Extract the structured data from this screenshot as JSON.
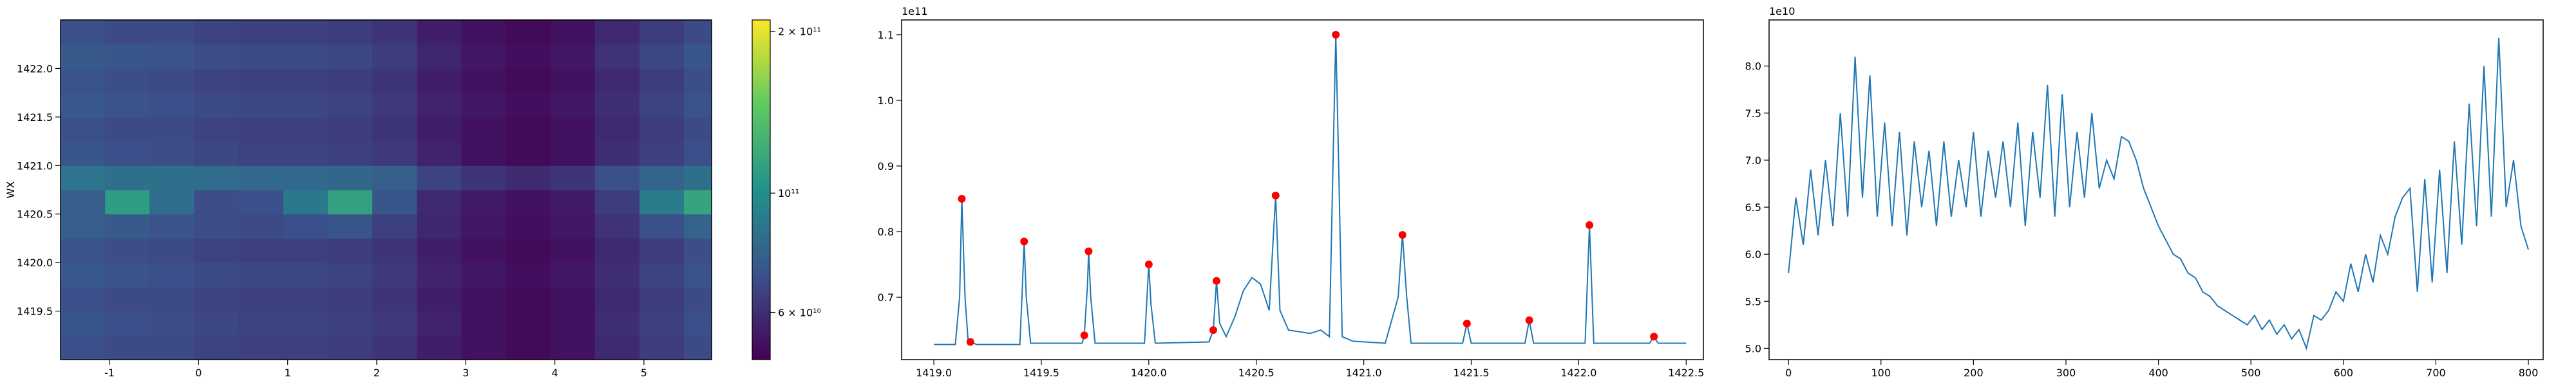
{
  "chart_data": [
    {
      "type": "heatmap",
      "x": [
        -1.3,
        -0.8,
        -0.3,
        0.2,
        0.7,
        1.2,
        1.7,
        2.2,
        2.7,
        3.2,
        3.7,
        4.2,
        4.7,
        5.2,
        5.7
      ],
      "y": [
        1419.125,
        1419.375,
        1419.625,
        1419.875,
        1420.125,
        1420.375,
        1420.625,
        1420.875,
        1421.125,
        1421.375,
        1421.625,
        1421.875,
        1422.125,
        1422.375
      ],
      "z": [
        [
          70000000000.0,
          68000000000.0,
          68000000000.0,
          66000000000.0,
          65000000000.0,
          65000000000.0,
          64000000000.0,
          62000000000.0,
          56000000000.0,
          53000000000.0,
          51000000000.0,
          53000000000.0,
          59000000000.0,
          64000000000.0,
          68000000000.0
        ],
        [
          72000000000.0,
          70000000000.0,
          69000000000.0,
          67000000000.0,
          66000000000.0,
          66000000000.0,
          65000000000.0,
          63000000000.0,
          57000000000.0,
          53000000000.0,
          51000000000.0,
          53000000000.0,
          60000000000.0,
          65000000000.0,
          70000000000.0
        ],
        [
          70000000000.0,
          68000000000.0,
          68000000000.0,
          66000000000.0,
          65000000000.0,
          65000000000.0,
          64000000000.0,
          62000000000.0,
          56000000000.0,
          53000000000.0,
          51000000000.0,
          53000000000.0,
          59000000000.0,
          64000000000.0,
          68000000000.0
        ],
        [
          73000000000.0,
          71000000000.0,
          70000000000.0,
          68000000000.0,
          67000000000.0,
          67000000000.0,
          66000000000.0,
          63000000000.0,
          57000000000.0,
          54000000000.0,
          52000000000.0,
          54000000000.0,
          60000000000.0,
          66000000000.0,
          71000000000.0
        ],
        [
          71000000000.0,
          69000000000.0,
          68000000000.0,
          66000000000.0,
          65000000000.0,
          65000000000.0,
          64000000000.0,
          62000000000.0,
          56000000000.0,
          53000000000.0,
          51000000000.0,
          53000000000.0,
          59000000000.0,
          64000000000.0,
          69000000000.0
        ],
        [
          76000000000.0,
          74000000000.0,
          71000000000.0,
          69000000000.0,
          68000000000.0,
          70000000000.0,
          72000000000.0,
          65000000000.0,
          58000000000.0,
          54000000000.0,
          52000000000.0,
          54000000000.0,
          61000000000.0,
          70000000000.0,
          78000000000.0
        ],
        [
          76000000000.0,
          110000000000.0,
          82000000000.0,
          69000000000.0,
          70000000000.0,
          88000000000.0,
          112000000000.0,
          72000000000.0,
          59000000000.0,
          55000000000.0,
          53000000000.0,
          55000000000.0,
          64000000000.0,
          90000000000.0,
          115000000000.0
        ],
        [
          86000000000.0,
          84000000000.0,
          84000000000.0,
          82000000000.0,
          80000000000.0,
          80000000000.0,
          79000000000.0,
          76000000000.0,
          66000000000.0,
          62000000000.0,
          59000000000.0,
          62000000000.0,
          70000000000.0,
          78000000000.0,
          84000000000.0
        ],
        [
          72000000000.0,
          70000000000.0,
          69000000000.0,
          67000000000.0,
          66000000000.0,
          66000000000.0,
          65000000000.0,
          63000000000.0,
          57000000000.0,
          53000000000.0,
          51000000000.0,
          53000000000.0,
          60000000000.0,
          65000000000.0,
          70000000000.0
        ],
        [
          70000000000.0,
          68000000000.0,
          68000000000.0,
          66000000000.0,
          65000000000.0,
          65000000000.0,
          64000000000.0,
          62000000000.0,
          56000000000.0,
          53000000000.0,
          51000000000.0,
          53000000000.0,
          59000000000.0,
          64000000000.0,
          68000000000.0
        ],
        [
          73000000000.0,
          71000000000.0,
          70000000000.0,
          68000000000.0,
          67000000000.0,
          67000000000.0,
          66000000000.0,
          63000000000.0,
          57000000000.0,
          54000000000.0,
          52000000000.0,
          54000000000.0,
          60000000000.0,
          66000000000.0,
          71000000000.0
        ],
        [
          71000000000.0,
          69000000000.0,
          68000000000.0,
          66000000000.0,
          65000000000.0,
          65000000000.0,
          64000000000.0,
          62000000000.0,
          56000000000.0,
          53000000000.0,
          51000000000.0,
          53000000000.0,
          59000000000.0,
          64000000000.0,
          69000000000.0
        ],
        [
          74000000000.0,
          72000000000.0,
          71000000000.0,
          69000000000.0,
          68000000000.0,
          68000000000.0,
          67000000000.0,
          64000000000.0,
          58000000000.0,
          54000000000.0,
          52000000000.0,
          54000000000.0,
          61000000000.0,
          67000000000.0,
          72000000000.0
        ],
        [
          70000000000.0,
          68000000000.0,
          68000000000.0,
          66000000000.0,
          65000000000.0,
          65000000000.0,
          64000000000.0,
          62000000000.0,
          56000000000.0,
          53000000000.0,
          51000000000.0,
          53000000000.0,
          59000000000.0,
          64000000000.0,
          68000000000.0
        ]
      ],
      "xlim": [
        -1.55,
        5.76
      ],
      "ylim": [
        1419.0,
        1422.5
      ],
      "xticks": [
        -1,
        0,
        1,
        2,
        3,
        4,
        5
      ],
      "yticks": [
        1419.5,
        {
          "value": 1420,
          "label": "1420.0"
        },
        1420.5,
        {
          "value": 1421,
          "label": "1421.0"
        },
        1421.5,
        {
          "value": 1422,
          "label": "1422.0"
        }
      ],
      "ylabel": "WX",
      "colormap": "viridis",
      "color_scale": "log",
      "clim": [
        49000000000.0,
        210000000000.0
      ],
      "colorbar_ticks": [
        {
          "value": 60000000000.0,
          "label": "6 × 10¹⁰"
        },
        {
          "value": 100000000000.0,
          "label": "10¹¹"
        },
        {
          "value": 200000000000.0,
          "label": "2 × 10¹¹"
        }
      ]
    },
    {
      "type": "line",
      "x": [
        1419.0,
        1419.1,
        1419.12,
        1419.13,
        1419.145,
        1419.16,
        1419.17,
        1419.2,
        1419.4,
        1419.41,
        1419.42,
        1419.43,
        1419.45,
        1419.69,
        1419.7,
        1419.715,
        1419.72,
        1419.73,
        1419.75,
        1419.98,
        1419.99,
        1420.0,
        1420.01,
        1420.03,
        1420.28,
        1420.3,
        1420.315,
        1420.33,
        1420.36,
        1420.4,
        1420.44,
        1420.48,
        1420.52,
        1420.56,
        1420.59,
        1420.61,
        1420.65,
        1420.75,
        1420.8,
        1420.84,
        1420.86,
        1420.87,
        1420.88,
        1420.9,
        1420.95,
        1421.1,
        1421.16,
        1421.18,
        1421.2,
        1421.22,
        1421.46,
        1421.48,
        1421.5,
        1421.75,
        1421.77,
        1421.79,
        1422.03,
        1422.05,
        1422.07,
        1422.33,
        1422.35,
        1422.37,
        1422.5
      ],
      "y": [
        0.628,
        0.628,
        0.7,
        0.85,
        0.7,
        0.63,
        0.632,
        0.628,
        0.628,
        0.7,
        0.785,
        0.7,
        0.63,
        0.63,
        0.642,
        0.72,
        0.77,
        0.7,
        0.63,
        0.63,
        0.69,
        0.75,
        0.69,
        0.63,
        0.632,
        0.65,
        0.725,
        0.66,
        0.64,
        0.67,
        0.71,
        0.73,
        0.72,
        0.68,
        0.855,
        0.68,
        0.65,
        0.645,
        0.65,
        0.64,
        0.95,
        1.1,
        0.95,
        0.64,
        0.633,
        0.63,
        0.7,
        0.795,
        0.7,
        0.63,
        0.63,
        0.66,
        0.63,
        0.63,
        0.665,
        0.63,
        0.63,
        0.81,
        0.63,
        0.63,
        0.64,
        0.63,
        0.63
      ],
      "color": "#1f77b4",
      "peaks": {
        "x": [
          1419.13,
          1419.17,
          1419.42,
          1419.7,
          1419.72,
          1420.0,
          1420.3,
          1420.315,
          1420.59,
          1420.87,
          1421.18,
          1421.48,
          1421.77,
          1422.05,
          1422.35
        ],
        "y": [
          0.85,
          0.632,
          0.785,
          0.642,
          0.77,
          0.75,
          0.65,
          0.725,
          0.855,
          1.1,
          0.795,
          0.66,
          0.665,
          0.81,
          0.64
        ],
        "color": "#ff0000"
      },
      "xlim": [
        1418.85,
        1422.58
      ],
      "ylim": [
        0.605,
        1.1225
      ],
      "xticks": [
        {
          "value": 1419,
          "label": "1419.0"
        },
        1419.5,
        {
          "value": 1420,
          "label": "1420.0"
        },
        1420.5,
        {
          "value": 1421,
          "label": "1421.0"
        },
        1421.5,
        {
          "value": 1422,
          "label": "1422.0"
        },
        1422.5
      ],
      "yticks": [
        0.7,
        0.8,
        0.9,
        {
          "value": 1.0,
          "label": "1.0"
        },
        1.1
      ],
      "y_offset_label": "1e11"
    },
    {
      "type": "line",
      "x": [
        0,
        8,
        16,
        24,
        32,
        40,
        48,
        56,
        64,
        72,
        80,
        88,
        96,
        104,
        112,
        120,
        128,
        136,
        144,
        152,
        160,
        168,
        176,
        184,
        192,
        200,
        208,
        216,
        224,
        232,
        240,
        248,
        256,
        264,
        272,
        280,
        288,
        296,
        304,
        312,
        320,
        328,
        336,
        344,
        352,
        360,
        368,
        376,
        384,
        392,
        400,
        408,
        416,
        424,
        432,
        440,
        448,
        456,
        464,
        472,
        480,
        488,
        496,
        504,
        512,
        520,
        528,
        536,
        544,
        552,
        560,
        568,
        576,
        584,
        592,
        600,
        608,
        616,
        624,
        632,
        640,
        648,
        656,
        664,
        672,
        680,
        688,
        696,
        704,
        712,
        720,
        728,
        736,
        744,
        752,
        760,
        768,
        776,
        784,
        792,
        800
      ],
      "y": [
        5.8,
        6.6,
        6.1,
        6.9,
        6.2,
        7.0,
        6.3,
        7.5,
        6.4,
        8.1,
        6.6,
        7.9,
        6.4,
        7.4,
        6.3,
        7.3,
        6.2,
        7.2,
        6.5,
        7.1,
        6.3,
        7.2,
        6.4,
        7.0,
        6.5,
        7.3,
        6.4,
        7.1,
        6.6,
        7.2,
        6.5,
        7.4,
        6.3,
        7.3,
        6.6,
        7.8,
        6.4,
        7.7,
        6.5,
        7.3,
        6.6,
        7.5,
        6.7,
        7.0,
        6.8,
        7.25,
        7.2,
        7.0,
        6.7,
        6.5,
        6.3,
        6.15,
        6.0,
        5.95,
        5.8,
        5.75,
        5.6,
        5.55,
        5.45,
        5.4,
        5.35,
        5.3,
        5.25,
        5.35,
        5.2,
        5.3,
        5.15,
        5.25,
        5.1,
        5.2,
        5.0,
        5.35,
        5.3,
        5.4,
        5.6,
        5.5,
        5.9,
        5.6,
        6.0,
        5.7,
        6.2,
        6.0,
        6.4,
        6.6,
        6.7,
        5.6,
        6.8,
        5.7,
        6.9,
        5.8,
        7.2,
        6.1,
        7.6,
        6.3,
        8.0,
        6.4,
        8.3,
        6.5,
        7.0,
        6.3,
        6.05
      ],
      "color": "#1f77b4",
      "xlim": [
        -21,
        816
      ],
      "ylim": [
        4.88,
        8.49
      ],
      "xticks": [
        0,
        100,
        200,
        300,
        400,
        500,
        600,
        700,
        800
      ],
      "yticks": [
        {
          "value": 5,
          "label": "5.0"
        },
        5.5,
        {
          "value": 6,
          "label": "6.0"
        },
        6.5,
        {
          "value": 7,
          "label": "7.0"
        },
        7.5,
        {
          "value": 8,
          "label": "8.0"
        }
      ],
      "y_offset_label": "1e10"
    }
  ]
}
